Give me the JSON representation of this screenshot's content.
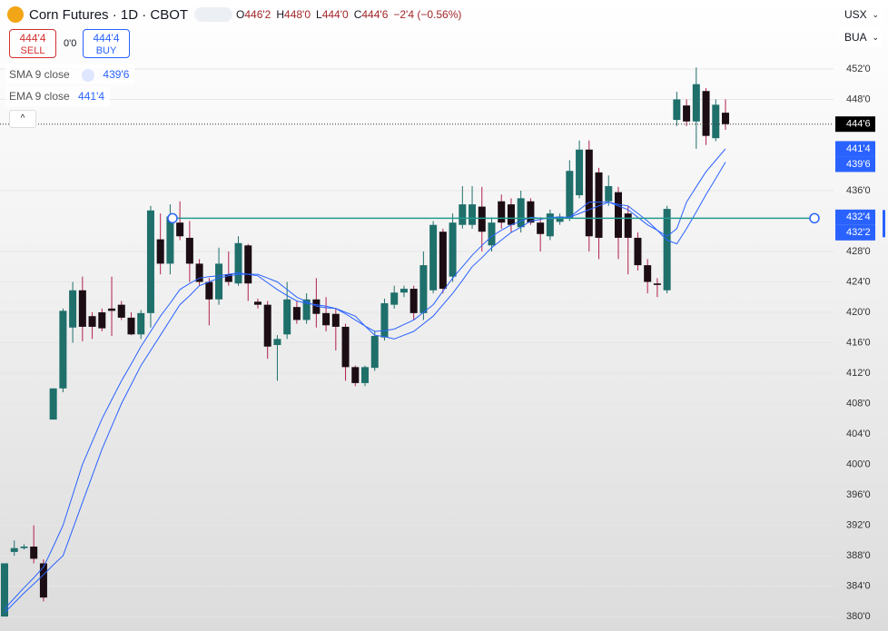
{
  "header": {
    "title": "Corn Futures · 1D · CBOT",
    "ohlc": [
      {
        "key": "O",
        "value": "446'2"
      },
      {
        "key": "H",
        "value": "448'0"
      },
      {
        "key": "L",
        "value": "444'0"
      },
      {
        "key": "C",
        "value": "444'6"
      }
    ],
    "change": "−2'4 (−0.56%)",
    "sell": {
      "price": "444'4",
      "label": "SELL"
    },
    "spread": "0'0",
    "buy": {
      "price": "444'4",
      "label": "BUY"
    },
    "currency": "USX",
    "unit": "BUA"
  },
  "chart_data": {
    "type": "candlestick",
    "up_color": "#1f6f6b",
    "down_color": "#1c0d14",
    "down_wick_color": "#b2204a",
    "open": [
      380,
      388.5,
      389,
      389.2,
      387,
      405.9,
      410,
      418,
      422.9,
      419.5,
      420,
      420.5,
      421,
      419.3,
      417.1,
      419.9,
      429.6,
      426.4,
      431.8,
      429.8,
      426.4,
      424,
      421.7,
      425,
      423.8,
      428.8,
      421.4,
      421,
      415.7,
      417.1,
      420.7,
      419,
      421.7,
      419.9,
      419.8,
      418.1,
      412.8,
      410.7,
      412.7,
      416.7,
      421,
      422.6,
      423.1,
      419.9,
      422.9,
      430.6,
      424.7,
      431.5,
      431.5,
      433.9,
      428.8,
      434.6,
      434.2,
      431.2,
      434.6,
      431.8,
      430,
      431.9,
      432.4,
      435.4,
      441.4,
      438.4,
      434.6,
      435.8,
      433,
      429.8,
      426.2,
      423.8,
      422.9,
      445.3,
      447.2,
      445.1,
      449.1,
      442.9,
      446.25
    ],
    "high": [
      387,
      390,
      389.5,
      392,
      387.5,
      410,
      420.5,
      424,
      424.7,
      420,
      420.5,
      424.7,
      421.5,
      420,
      420.3,
      434,
      433,
      434.2,
      434.6,
      432,
      427,
      424.5,
      428.5,
      428,
      430,
      429,
      421.8,
      421.5,
      417,
      424,
      421.5,
      422.5,
      424.5,
      422,
      420.5,
      418.5,
      413,
      413,
      417.5,
      421.8,
      423.5,
      423.5,
      423.5,
      428,
      432,
      431,
      433,
      436.6,
      436.6,
      436.5,
      432.5,
      435.5,
      435,
      436,
      435,
      432.5,
      433.5,
      433,
      440,
      442.6,
      442.6,
      439,
      438,
      436.5,
      434,
      430.5,
      427,
      424.5,
      434,
      449,
      448,
      452.2,
      449.5,
      448,
      448
    ],
    "low": [
      380,
      388,
      388.8,
      387,
      382,
      405.9,
      409.5,
      416,
      416.2,
      416.5,
      417.5,
      416.9,
      419,
      417,
      416.5,
      418,
      425,
      425,
      429.5,
      424,
      423.5,
      418.3,
      421,
      423.5,
      423.5,
      421.5,
      420.5,
      413.9,
      411,
      416.5,
      418.5,
      418.5,
      418,
      417.5,
      415,
      411,
      410.3,
      410.3,
      412.3,
      416.3,
      420.5,
      422,
      419,
      419,
      422.5,
      422.5,
      424,
      431,
      431,
      428,
      428,
      431,
      430.5,
      430.5,
      431.5,
      428,
      429.5,
      431.5,
      432,
      435,
      428,
      427,
      434,
      427,
      425,
      425.5,
      422.5,
      422,
      422.5,
      444.5,
      444.5,
      441.5,
      442,
      442.5,
      444
    ],
    "close": [
      387,
      389,
      389.2,
      387.6,
      382.5,
      410,
      420.2,
      422.9,
      418.1,
      418.1,
      417.9,
      420.2,
      419.3,
      417.1,
      419.9,
      433.4,
      426.4,
      432.6,
      430,
      426.4,
      424,
      421.7,
      426.4,
      424,
      429.1,
      423.8,
      421,
      415.5,
      416.5,
      421.7,
      419,
      421.7,
      419.8,
      418.3,
      418.1,
      412.8,
      410.7,
      412.8,
      416.9,
      421.2,
      422.6,
      423.1,
      419.9,
      426.2,
      431.5,
      423.1,
      431.8,
      434.2,
      434.2,
      430.6,
      431.8,
      431.8,
      431.5,
      435,
      431.8,
      430.3,
      433,
      432.6,
      438.6,
      441.4,
      430,
      429.8,
      436.6,
      429.8,
      429.8,
      426.2,
      424,
      423.6,
      433.6,
      448,
      445.1,
      450,
      443.2,
      447.3,
      444.75
    ],
    "lines": [
      {
        "name": "SMA 9 close",
        "value_label": "439'6",
        "color": "#2962ff",
        "values": [
          380.5,
          381.8,
          383.1,
          384.3,
          385.5,
          386.8,
          388,
          391.5,
          395,
          398.5,
          402,
          405,
          408,
          410.5,
          413,
          415,
          417,
          419,
          421,
          422.2,
          423.5,
          424,
          424.5,
          424.8,
          425,
          425,
          425,
          424.5,
          424,
          423,
          422,
          421.4,
          420.8,
          420.6,
          420.5,
          420,
          419.5,
          418.2,
          417,
          416.8,
          416.5,
          417,
          417.5,
          418.5,
          419.5,
          421,
          422.5,
          424.2,
          426,
          427.2,
          428.5,
          429.5,
          430.5,
          431.2,
          432,
          432.2,
          432.5,
          432.5,
          432.5,
          433,
          433.5,
          434,
          434.5,
          434.2,
          434,
          433,
          432,
          430.8,
          429.5,
          429,
          431,
          433.2,
          435.5,
          437.6,
          439.75
        ]
      },
      {
        "name": "EMA 9 close",
        "value_label": "441'4",
        "color": "#2962ff",
        "values": [
          381,
          382.4,
          383.8,
          385.1,
          386.5,
          389.2,
          392,
          396,
          400,
          403,
          406,
          408.5,
          411,
          413.2,
          415.5,
          417.5,
          419.5,
          421.2,
          423,
          423.8,
          424.5,
          424.7,
          424.8,
          425,
          425.2,
          425,
          424.8,
          423.9,
          423,
          422.2,
          421.5,
          421.2,
          421,
          420.8,
          420.5,
          419.8,
          419,
          418.2,
          417.5,
          417.6,
          417.8,
          418.4,
          419,
          420,
          421,
          422.8,
          424.5,
          426,
          427.5,
          428.8,
          430,
          430.8,
          431.5,
          432,
          432.5,
          432.4,
          432.3,
          432.4,
          432.5,
          433.5,
          434.5,
          434.5,
          434.5,
          434,
          433.5,
          432.5,
          431.5,
          430.8,
          430,
          431,
          434.5,
          436.5,
          438.5,
          440,
          441.5
        ]
      }
    ],
    "trend_line": {
      "value": 432.375,
      "color": "#22998c"
    },
    "price_labels": [
      {
        "value": 444.75,
        "label": "444'6",
        "color": "#000000"
      },
      {
        "value": 441.5,
        "label": "441'4",
        "color": "#2962ff"
      },
      {
        "value": 439.75,
        "label": "439'6",
        "color": "#2962ff"
      },
      {
        "value": 432.5,
        "label": "432'4",
        "color": "#2962ff"
      },
      {
        "value": 432.25,
        "label": "432'2",
        "color": "#2962ff"
      }
    ],
    "ylim": [
      378.1,
      461.07
    ],
    "yticks": [
      {
        "value": 452,
        "label": "452'0"
      },
      {
        "value": 448,
        "label": "448'0"
      },
      {
        "value": 436,
        "label": "436'0"
      },
      {
        "value": 428,
        "label": "428'0"
      },
      {
        "value": 424,
        "label": "424'0"
      },
      {
        "value": 420,
        "label": "420'0"
      },
      {
        "value": 416,
        "label": "416'0"
      },
      {
        "value": 412,
        "label": "412'0"
      },
      {
        "value": 408,
        "label": "408'0"
      },
      {
        "value": 404,
        "label": "404'0"
      },
      {
        "value": 400,
        "label": "400'0"
      },
      {
        "value": 396,
        "label": "396'0"
      },
      {
        "value": 392,
        "label": "392'0"
      },
      {
        "value": 388,
        "label": "388'0"
      },
      {
        "value": 384,
        "label": "384'0"
      },
      {
        "value": 380,
        "label": "380'0"
      }
    ],
    "grid": true
  }
}
